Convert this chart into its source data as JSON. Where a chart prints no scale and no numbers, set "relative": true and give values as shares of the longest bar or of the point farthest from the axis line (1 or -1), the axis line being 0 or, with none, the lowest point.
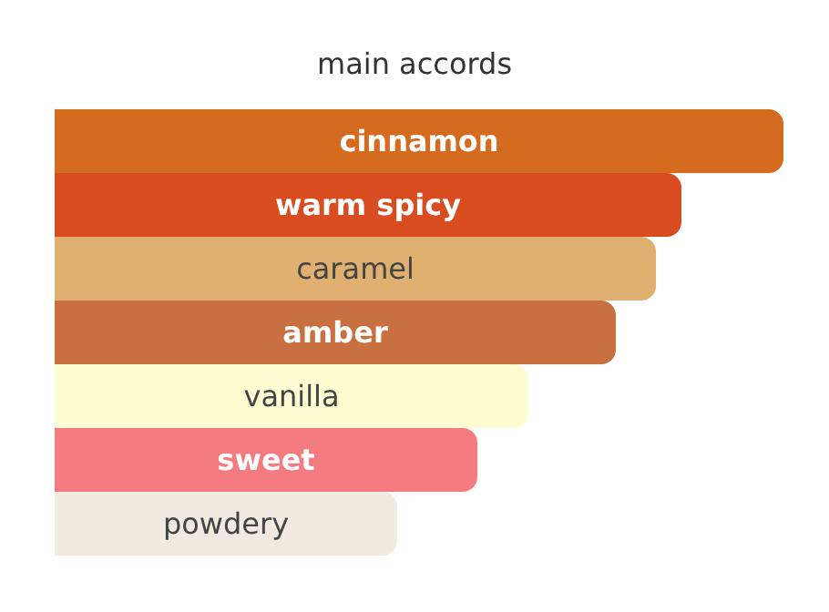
{
  "chart_data": {
    "type": "bar",
    "title": "main accords",
    "orientation": "horizontal",
    "relative": true,
    "categories": [
      "cinnamon",
      "warm spicy",
      "caramel",
      "amber",
      "vanilla",
      "sweet",
      "powdery"
    ],
    "values": [
      1,
      0.86,
      0.825,
      0.77,
      0.65,
      0.58,
      0.47
    ],
    "colors": [
      "#d46b1f",
      "#d84c20",
      "#e0b070",
      "#c87040",
      "#fefcd0",
      "#f47c80",
      "#f2e9e0"
    ]
  }
}
